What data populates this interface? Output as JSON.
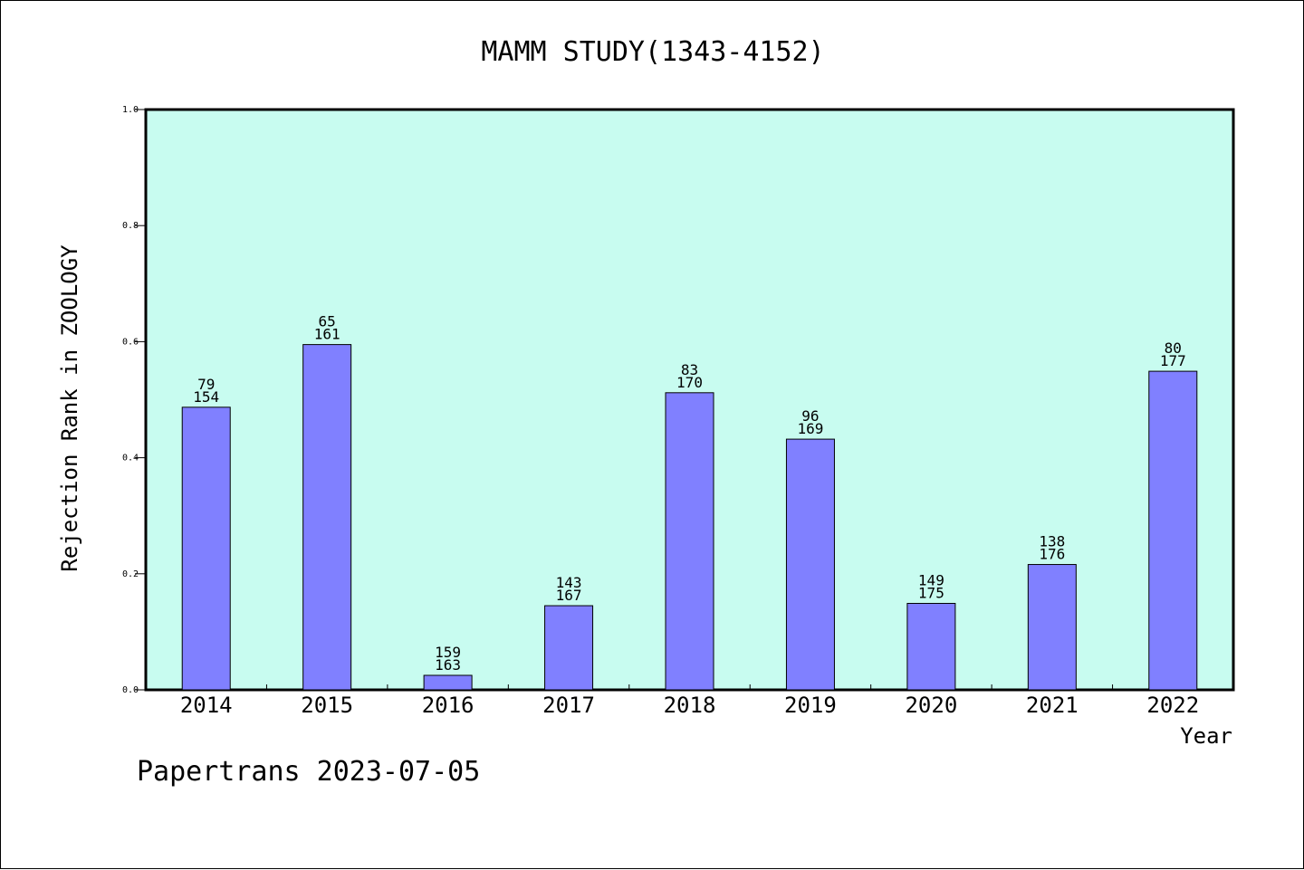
{
  "chart_data": {
    "type": "bar",
    "title": "MAMM STUDY(1343-4152)",
    "xlabel": "Year",
    "ylabel": "Rejection Rank in ZOOLOGY",
    "ylim": [
      0,
      1.0
    ],
    "yticks": [
      "0.0",
      "0.2",
      "0.4",
      "0.6",
      "0.8",
      "1.0"
    ],
    "categories": [
      "2014",
      "2015",
      "2016",
      "2017",
      "2018",
      "2019",
      "2020",
      "2021",
      "2022"
    ],
    "values": [
      0.487,
      0.595,
      0.025,
      0.145,
      0.512,
      0.432,
      0.149,
      0.216,
      0.549
    ],
    "bar_labels_top": [
      "79",
      "65",
      "159",
      "143",
      "83",
      "96",
      "149",
      "138",
      "80"
    ],
    "bar_labels_bottom": [
      "154",
      "161",
      "163",
      "167",
      "170",
      "169",
      "175",
      "176",
      "177"
    ],
    "grid": false,
    "colors": {
      "plot_background": "#c8fcf0",
      "bar_fill": "#8080ff",
      "bar_stroke": "#000000"
    }
  },
  "footer": {
    "text": "Papertrans 2023-07-05"
  }
}
